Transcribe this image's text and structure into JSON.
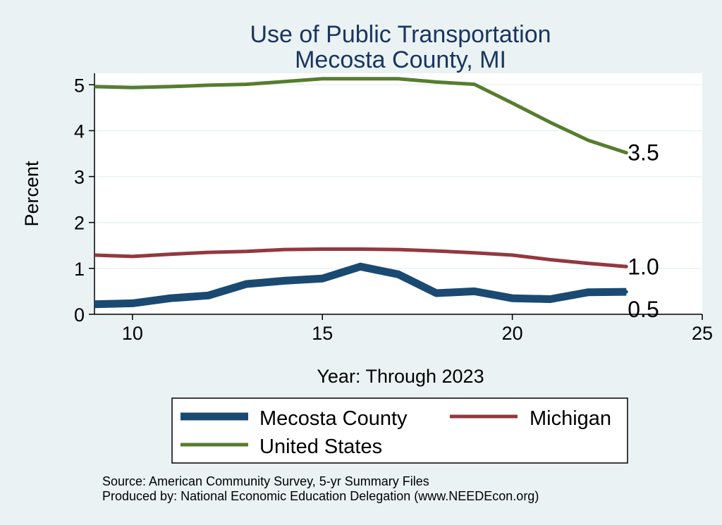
{
  "chart_data": {
    "type": "line",
    "title": "Use of Public Transportation",
    "subtitle": "Mecosta County, MI",
    "xlabel": "Year: Through 2023",
    "ylabel": "Percent",
    "xlim": [
      9,
      25
    ],
    "ylim": [
      0,
      5.25
    ],
    "x_ticks": [
      10,
      15,
      20,
      25
    ],
    "y_ticks": [
      0,
      1,
      2,
      3,
      4,
      5
    ],
    "grid": true,
    "legend_position": "bottom",
    "x": [
      9,
      10,
      11,
      12,
      13,
      14,
      15,
      16,
      17,
      18,
      19,
      20,
      21,
      22,
      23
    ],
    "series": [
      {
        "name": "Mecosta County",
        "color": "#1a4a72",
        "values": [
          0.22,
          0.24,
          0.35,
          0.41,
          0.66,
          0.73,
          0.78,
          1.04,
          0.87,
          0.46,
          0.5,
          0.35,
          0.33,
          0.48,
          0.49
        ],
        "end_label": "0.5"
      },
      {
        "name": "Michigan",
        "color": "#93383f",
        "values": [
          1.29,
          1.26,
          1.31,
          1.35,
          1.37,
          1.41,
          1.42,
          1.42,
          1.41,
          1.38,
          1.34,
          1.29,
          1.19,
          1.11,
          1.04
        ],
        "end_label": "1.0"
      },
      {
        "name": "United States",
        "color": "#567d2e",
        "values": [
          4.96,
          4.94,
          4.96,
          4.99,
          5.01,
          5.07,
          5.13,
          5.13,
          5.13,
          5.06,
          5.01,
          4.6,
          4.18,
          3.79,
          3.52
        ],
        "end_label": "3.5"
      }
    ]
  },
  "footer": {
    "source": "Source: American Community Survey, 5-yr Summary Files",
    "produced_by": "Produced by: National Economic Education Delegation (www.NEEDEcon.org)"
  }
}
